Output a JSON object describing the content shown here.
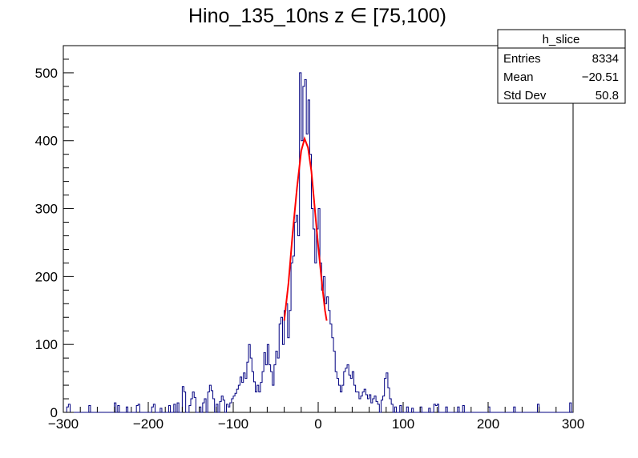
{
  "chart_data": {
    "type": "histogram",
    "title": "Hino_135_10ns z  ∈ [75,100)",
    "xlabel": "",
    "ylabel": "",
    "xlim": [
      -300,
      300
    ],
    "ylim": [
      0,
      540
    ],
    "xticks": [
      -300,
      -200,
      -100,
      0,
      100,
      200,
      300
    ],
    "xtick_labels": [
      "−300",
      "−200",
      "−100",
      "0",
      "100",
      "200",
      "300"
    ],
    "yticks": [
      0,
      100,
      200,
      300,
      400,
      500
    ],
    "ytick_labels": [
      "0",
      "100",
      "200",
      "300",
      "400",
      "500"
    ],
    "grid": false,
    "colors": {
      "histogram": "#000080",
      "fit": "#ff0000"
    },
    "stats_box": {
      "position": "top-right",
      "title": "h_slice",
      "rows": [
        {
          "label": "Entries",
          "value": "8334"
        },
        {
          "label": "Mean",
          "value": "−20.51"
        },
        {
          "label": "Std Dev",
          "value": "50.8"
        }
      ]
    },
    "series": [
      {
        "type": "histogram",
        "bin_width": 2,
        "bin_points": [
          [
            -296,
            8
          ],
          [
            -294,
            12
          ],
          [
            -270,
            10
          ],
          [
            -240,
            14
          ],
          [
            -236,
            10
          ],
          [
            -226,
            8
          ],
          [
            -214,
            10
          ],
          [
            -212,
            12
          ],
          [
            -196,
            8
          ],
          [
            -194,
            12
          ],
          [
            -186,
            6
          ],
          [
            -176,
            10
          ],
          [
            -170,
            12
          ],
          [
            -166,
            14
          ],
          [
            -160,
            38
          ],
          [
            -158,
            30
          ],
          [
            -152,
            10
          ],
          [
            -150,
            20
          ],
          [
            -148,
            30
          ],
          [
            -146,
            22
          ],
          [
            -140,
            8
          ],
          [
            -136,
            14
          ],
          [
            -134,
            20
          ],
          [
            -130,
            30
          ],
          [
            -128,
            40
          ],
          [
            -126,
            32
          ],
          [
            -124,
            20
          ],
          [
            -120,
            12
          ],
          [
            -116,
            16
          ],
          [
            -114,
            24
          ],
          [
            -112,
            18
          ],
          [
            -108,
            12
          ],
          [
            -106,
            8
          ],
          [
            -104,
            14
          ],
          [
            -102,
            20
          ],
          [
            -100,
            24
          ],
          [
            -98,
            28
          ],
          [
            -96,
            34
          ],
          [
            -94,
            40
          ],
          [
            -92,
            52
          ],
          [
            -90,
            44
          ],
          [
            -88,
            58
          ],
          [
            -86,
            50
          ],
          [
            -84,
            74
          ],
          [
            -82,
            100
          ],
          [
            -80,
            80
          ],
          [
            -78,
            60
          ],
          [
            -76,
            45
          ],
          [
            -74,
            30
          ],
          [
            -72,
            40
          ],
          [
            -70,
            30
          ],
          [
            -68,
            44
          ],
          [
            -66,
            60
          ],
          [
            -64,
            88
          ],
          [
            -62,
            70
          ],
          [
            -60,
            100
          ],
          [
            -58,
            70
          ],
          [
            -56,
            60
          ],
          [
            -54,
            40
          ],
          [
            -52,
            70
          ],
          [
            -50,
            90
          ],
          [
            -48,
            80
          ],
          [
            -46,
            130
          ],
          [
            -44,
            140
          ],
          [
            -42,
            100
          ],
          [
            -40,
            150
          ],
          [
            -38,
            160
          ],
          [
            -36,
            110
          ],
          [
            -34,
            150
          ],
          [
            -32,
            220
          ],
          [
            -30,
            230
          ],
          [
            -28,
            280
          ],
          [
            -26,
            290
          ],
          [
            -24,
            260
          ],
          [
            -22,
            500
          ],
          [
            -20,
            400
          ],
          [
            -18,
            480
          ],
          [
            -16,
            490
          ],
          [
            -14,
            410
          ],
          [
            -12,
            460
          ],
          [
            -10,
            380
          ],
          [
            -8,
            300
          ],
          [
            -6,
            270
          ],
          [
            -4,
            220
          ],
          [
            -2,
            270
          ],
          [
            0,
            300
          ],
          [
            2,
            220
          ],
          [
            4,
            180
          ],
          [
            6,
            200
          ],
          [
            8,
            160
          ],
          [
            10,
            170
          ],
          [
            12,
            150
          ],
          [
            14,
            130
          ],
          [
            16,
            110
          ],
          [
            18,
            90
          ],
          [
            20,
            60
          ],
          [
            22,
            50
          ],
          [
            24,
            40
          ],
          [
            26,
            30
          ],
          [
            28,
            40
          ],
          [
            30,
            60
          ],
          [
            32,
            65
          ],
          [
            34,
            70
          ],
          [
            36,
            55
          ],
          [
            38,
            50
          ],
          [
            40,
            60
          ],
          [
            42,
            40
          ],
          [
            44,
            30
          ],
          [
            46,
            30
          ],
          [
            48,
            20
          ],
          [
            50,
            24
          ],
          [
            52,
            30
          ],
          [
            54,
            34
          ],
          [
            56,
            26
          ],
          [
            58,
            20
          ],
          [
            60,
            26
          ],
          [
            62,
            14
          ],
          [
            64,
            20
          ],
          [
            66,
            24
          ],
          [
            68,
            16
          ],
          [
            70,
            12
          ],
          [
            74,
            18
          ],
          [
            76,
            24
          ],
          [
            78,
            50
          ],
          [
            80,
            58
          ],
          [
            82,
            36
          ],
          [
            84,
            20
          ],
          [
            86,
            12
          ],
          [
            90,
            8
          ],
          [
            96,
            10
          ],
          [
            104,
            8
          ],
          [
            110,
            6
          ],
          [
            120,
            8
          ],
          [
            130,
            6
          ],
          [
            136,
            12
          ],
          [
            138,
            10
          ],
          [
            140,
            12
          ],
          [
            150,
            8
          ],
          [
            164,
            8
          ],
          [
            170,
            10
          ],
          [
            200,
            8
          ],
          [
            230,
            8
          ],
          [
            258,
            12
          ],
          [
            296,
            14
          ]
        ]
      },
      {
        "type": "gaussian-fit",
        "points": [
          [
            -40,
            135
          ],
          [
            -35,
            190
          ],
          [
            -30,
            265
          ],
          [
            -25,
            330
          ],
          [
            -20,
            385
          ],
          [
            -16,
            403
          ],
          [
            -12,
            390
          ],
          [
            -8,
            355
          ],
          [
            -4,
            300
          ],
          [
            0,
            245
          ],
          [
            4,
            195
          ],
          [
            8,
            150
          ],
          [
            10,
            135
          ]
        ]
      }
    ]
  }
}
